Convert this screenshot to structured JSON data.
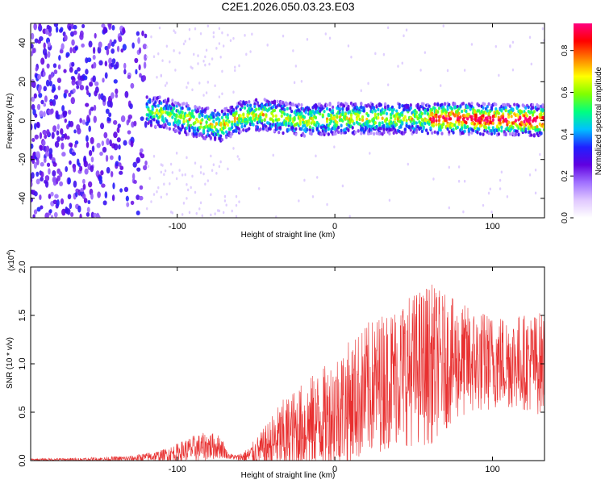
{
  "figure": {
    "title": "C2E1.2026.050.03.23.E03"
  },
  "chart_data": [
    {
      "type": "heatmap",
      "xlabel": "Height of straight line (km)",
      "ylabel": "Frequency (Hz)",
      "xlim": [
        -193,
        133
      ],
      "ylim": [
        -50,
        50
      ],
      "x_ticks": [
        -100,
        0,
        100
      ],
      "y_ticks": [
        -40,
        -20,
        0,
        20,
        40
      ],
      "x_tick_labels": [
        "-100",
        "0",
        "100"
      ],
      "y_tick_labels": [
        "-40",
        "-20",
        "0",
        "20",
        "40"
      ],
      "colorbar": {
        "label": "Normalized spectral amplitude",
        "range": [
          0.0,
          0.93
        ],
        "ticks": [
          0.0,
          0.2,
          0.4,
          0.6,
          0.8
        ],
        "tick_labels": [
          "0.0",
          "0.2",
          "0.4",
          "0.6",
          "0.8"
        ],
        "colormap": [
          "#ffffff",
          "#e0c8ff",
          "#a070ff",
          "#6000e0",
          "#2020ff",
          "#00c0ff",
          "#00ff80",
          "#80ff00",
          "#ffff00",
          "#ff8000",
          "#ff0000",
          "#ff0080"
        ]
      },
      "band": {
        "center_frequency_hz": [
          {
            "x": -140,
            "f": 6
          },
          {
            "x": -110,
            "f": 4
          },
          {
            "x": -90,
            "f": 0
          },
          {
            "x": -72,
            "f": -3
          },
          {
            "x": -60,
            "f": 2
          },
          {
            "x": -45,
            "f": 3
          },
          {
            "x": -20,
            "f": 0
          },
          {
            "x": 0,
            "f": 1
          },
          {
            "x": 40,
            "f": 1
          },
          {
            "x": 80,
            "f": 1
          },
          {
            "x": 133,
            "f": 0
          }
        ],
        "noise_region_km": [
          -193,
          -120
        ]
      }
    },
    {
      "type": "line",
      "xlabel": "Height of straight line (km)",
      "ylabel": "SNR (10 * v/v)",
      "y_multiplier": "(x10",
      "y_multiplier_exp": "4",
      "y_multiplier_close": ")",
      "xlim": [
        -193,
        133
      ],
      "ylim": [
        0.0,
        2.0
      ],
      "x_ticks": [
        -100,
        0,
        100
      ],
      "x_tick_labels": [
        "-100",
        "0",
        "100"
      ],
      "y_ticks": [
        0.0,
        0.5,
        1.0,
        1.5,
        2.0
      ],
      "y_tick_labels": [
        "0.0",
        "0.5",
        "1.0",
        "1.5",
        "2.0"
      ],
      "line_color": "#e83030",
      "series": [
        {
          "name": "SNR",
          "x": [
            -193,
            -160,
            -130,
            -110,
            -100,
            -90,
            -80,
            -72,
            -68,
            -62,
            -55,
            -45,
            -35,
            -25,
            -15,
            -5,
            0,
            10,
            20,
            30,
            40,
            50,
            60,
            70,
            80,
            90,
            100,
            110,
            120,
            133
          ],
          "baseline": [
            0.01,
            0.01,
            0.02,
            0.05,
            0.08,
            0.12,
            0.15,
            0.14,
            0.05,
            0.03,
            0.05,
            0.12,
            0.22,
            0.3,
            0.38,
            0.45,
            0.52,
            0.6,
            0.72,
            0.82,
            0.9,
            0.95,
            1.0,
            1.02,
            1.03,
            1.02,
            1.02,
            1.03,
            1.02,
            1.0
          ],
          "spread": [
            0.01,
            0.02,
            0.03,
            0.06,
            0.1,
            0.14,
            0.15,
            0.12,
            0.03,
            0.03,
            0.08,
            0.22,
            0.38,
            0.45,
            0.5,
            0.55,
            0.6,
            0.65,
            0.7,
            0.72,
            0.75,
            0.8,
            0.85,
            0.7,
            0.6,
            0.55,
            0.5,
            0.5,
            0.5,
            0.55
          ]
        }
      ]
    }
  ]
}
